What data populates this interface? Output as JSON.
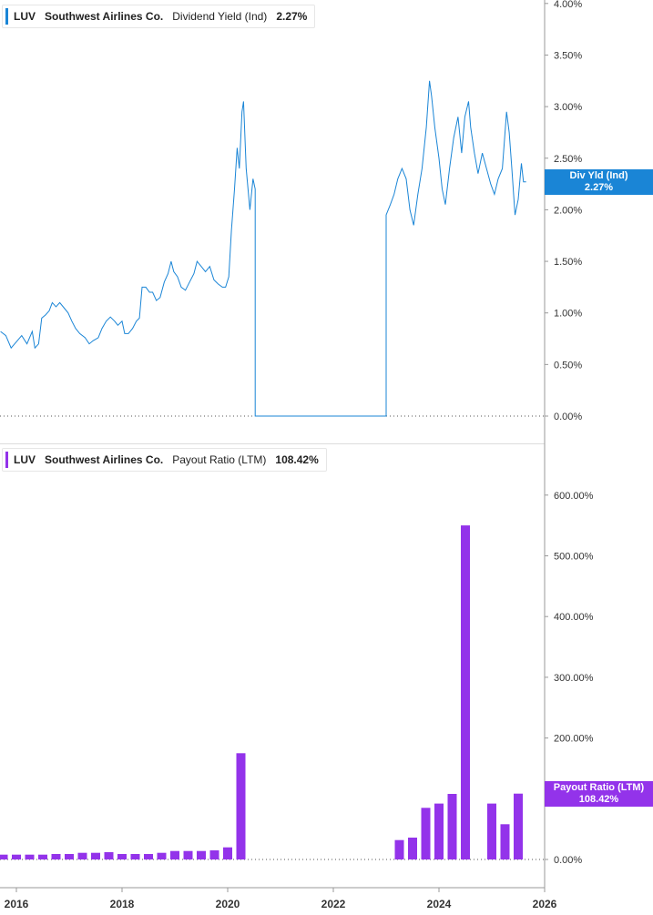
{
  "colors": {
    "yield_line": "#1a85d6",
    "payout_bar": "#9333ea",
    "axis": "#999999",
    "zero_line": "#555555"
  },
  "legend_top": {
    "ticker": "LUV",
    "company": "Southwest Airlines Co.",
    "metric": "Dividend Yield (Ind)",
    "value": "2.27%"
  },
  "legend_bottom": {
    "ticker": "LUV",
    "company": "Southwest Airlines Co.",
    "metric": "Payout Ratio (LTM)",
    "value": "108.42%"
  },
  "tag_top": {
    "label": "Div Yld (Ind)",
    "value": "2.27%"
  },
  "tag_bottom": {
    "label": "Payout Ratio (LTM)",
    "value": "108.42%"
  },
  "chart_data": [
    {
      "type": "line",
      "title": "",
      "series": [
        {
          "name": "Dividend Yield (Ind)"
        }
      ],
      "ylim": [
        0,
        4
      ],
      "y_ticks": [
        "0.00%",
        "0.50%",
        "1.00%",
        "1.50%",
        "2.00%",
        "2.50%",
        "3.00%",
        "3.50%",
        "4.00%"
      ],
      "x_ticks": [
        "2016",
        "2018",
        "2020",
        "2022",
        "2024",
        "2026"
      ],
      "points": [
        [
          2015.7,
          0.82
        ],
        [
          2015.8,
          0.78
        ],
        [
          2015.9,
          0.66
        ],
        [
          2016.0,
          0.72
        ],
        [
          2016.1,
          0.78
        ],
        [
          2016.2,
          0.7
        ],
        [
          2016.3,
          0.82
        ],
        [
          2016.35,
          0.66
        ],
        [
          2016.42,
          0.7
        ],
        [
          2016.48,
          0.95
        ],
        [
          2016.55,
          0.98
        ],
        [
          2016.62,
          1.02
        ],
        [
          2016.68,
          1.1
        ],
        [
          2016.75,
          1.06
        ],
        [
          2016.82,
          1.1
        ],
        [
          2016.9,
          1.05
        ],
        [
          2016.98,
          1.0
        ],
        [
          2017.05,
          0.92
        ],
        [
          2017.12,
          0.85
        ],
        [
          2017.2,
          0.8
        ],
        [
          2017.3,
          0.76
        ],
        [
          2017.38,
          0.7
        ],
        [
          2017.45,
          0.73
        ],
        [
          2017.55,
          0.76
        ],
        [
          2017.62,
          0.85
        ],
        [
          2017.7,
          0.92
        ],
        [
          2017.78,
          0.96
        ],
        [
          2017.86,
          0.92
        ],
        [
          2017.92,
          0.88
        ],
        [
          2018.0,
          0.92
        ],
        [
          2018.05,
          0.8
        ],
        [
          2018.12,
          0.8
        ],
        [
          2018.2,
          0.85
        ],
        [
          2018.27,
          0.92
        ],
        [
          2018.33,
          0.95
        ],
        [
          2018.38,
          1.25
        ],
        [
          2018.45,
          1.25
        ],
        [
          2018.52,
          1.2
        ],
        [
          2018.58,
          1.2
        ],
        [
          2018.65,
          1.12
        ],
        [
          2018.72,
          1.15
        ],
        [
          2018.8,
          1.3
        ],
        [
          2018.87,
          1.38
        ],
        [
          2018.93,
          1.5
        ],
        [
          2018.98,
          1.4
        ],
        [
          2019.05,
          1.35
        ],
        [
          2019.12,
          1.25
        ],
        [
          2019.2,
          1.22
        ],
        [
          2019.28,
          1.3
        ],
        [
          2019.36,
          1.38
        ],
        [
          2019.42,
          1.5
        ],
        [
          2019.5,
          1.45
        ],
        [
          2019.58,
          1.4
        ],
        [
          2019.66,
          1.45
        ],
        [
          2019.74,
          1.32
        ],
        [
          2019.82,
          1.28
        ],
        [
          2019.9,
          1.25
        ],
        [
          2019.96,
          1.25
        ],
        [
          2020.02,
          1.35
        ],
        [
          2020.07,
          1.8
        ],
        [
          2020.13,
          2.2
        ],
        [
          2020.18,
          2.6
        ],
        [
          2020.22,
          2.4
        ],
        [
          2020.27,
          2.95
        ],
        [
          2020.3,
          3.05
        ],
        [
          2020.35,
          2.4
        ],
        [
          2020.42,
          2.0
        ],
        [
          2020.48,
          2.3
        ],
        [
          2020.52,
          2.2
        ],
        [
          2020.52,
          0.0
        ],
        [
          2023.0,
          0.0
        ],
        [
          2023.0,
          1.95
        ],
        [
          2023.08,
          2.05
        ],
        [
          2023.15,
          2.15
        ],
        [
          2023.22,
          2.3
        ],
        [
          2023.3,
          2.4
        ],
        [
          2023.38,
          2.3
        ],
        [
          2023.45,
          2.0
        ],
        [
          2023.52,
          1.85
        ],
        [
          2023.6,
          2.15
        ],
        [
          2023.68,
          2.4
        ],
        [
          2023.76,
          2.8
        ],
        [
          2023.82,
          3.25
        ],
        [
          2023.86,
          3.1
        ],
        [
          2023.92,
          2.8
        ],
        [
          2024.0,
          2.5
        ],
        [
          2024.06,
          2.2
        ],
        [
          2024.12,
          2.05
        ],
        [
          2024.2,
          2.4
        ],
        [
          2024.28,
          2.7
        ],
        [
          2024.36,
          2.9
        ],
        [
          2024.43,
          2.55
        ],
        [
          2024.49,
          2.9
        ],
        [
          2024.56,
          3.05
        ],
        [
          2024.6,
          2.8
        ],
        [
          2024.67,
          2.55
        ],
        [
          2024.74,
          2.35
        ],
        [
          2024.82,
          2.55
        ],
        [
          2024.9,
          2.4
        ],
        [
          2024.98,
          2.25
        ],
        [
          2025.05,
          2.15
        ],
        [
          2025.12,
          2.3
        ],
        [
          2025.2,
          2.4
        ],
        [
          2025.28,
          2.95
        ],
        [
          2025.33,
          2.75
        ],
        [
          2025.38,
          2.4
        ],
        [
          2025.44,
          1.95
        ],
        [
          2025.5,
          2.1
        ],
        [
          2025.56,
          2.45
        ],
        [
          2025.6,
          2.27
        ],
        [
          2025.65,
          2.27
        ]
      ]
    },
    {
      "type": "bar",
      "title": "",
      "series": [
        {
          "name": "Payout Ratio (LTM)"
        }
      ],
      "ylim": [
        0,
        650
      ],
      "y_ticks": [
        "0.00%",
        "100.00%",
        "200.00%",
        "300.00%",
        "400.00%",
        "500.00%",
        "600.00%"
      ],
      "x_ticks": [
        "2016",
        "2018",
        "2020",
        "2022",
        "2024",
        "2026"
      ],
      "bars": [
        [
          2015.75,
          8
        ],
        [
          2016.0,
          8
        ],
        [
          2016.25,
          8
        ],
        [
          2016.5,
          8
        ],
        [
          2016.75,
          9
        ],
        [
          2017.0,
          9
        ],
        [
          2017.25,
          11
        ],
        [
          2017.5,
          11
        ],
        [
          2017.75,
          12
        ],
        [
          2018.0,
          9
        ],
        [
          2018.25,
          9
        ],
        [
          2018.5,
          9
        ],
        [
          2018.75,
          11
        ],
        [
          2019.0,
          14
        ],
        [
          2019.25,
          14
        ],
        [
          2019.5,
          14
        ],
        [
          2019.75,
          15
        ],
        [
          2020.0,
          20
        ],
        [
          2020.25,
          175
        ],
        [
          2023.25,
          32
        ],
        [
          2023.5,
          36
        ],
        [
          2023.75,
          85
        ],
        [
          2024.0,
          92
        ],
        [
          2024.25,
          108
        ],
        [
          2024.5,
          550
        ],
        [
          2025.0,
          92
        ],
        [
          2025.25,
          58
        ],
        [
          2025.5,
          108.42
        ]
      ]
    }
  ]
}
